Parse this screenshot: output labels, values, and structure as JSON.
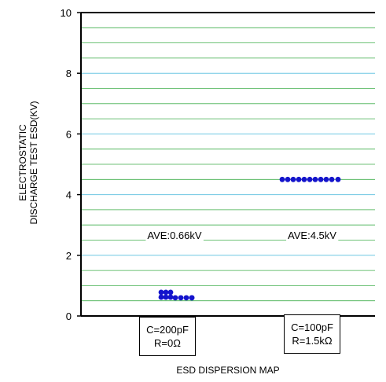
{
  "chart_data": {
    "type": "scatter",
    "ylabel_lines": [
      "ELECTROSTATIC",
      "DISCHARGE TEST ESD(KV)"
    ],
    "xlabel": "ESD DISPERSION MAP",
    "ylim": [
      0,
      10
    ],
    "yticks": [
      "0",
      "2",
      "4",
      "6",
      "8",
      "10"
    ],
    "grid": true,
    "series": [
      {
        "condition_lines": [
          "C=200pF",
          "R=0Ω"
        ],
        "annotation": "AVE:0.66kV",
        "color": "#1414cc",
        "values": [
          0.78,
          0.62,
          0.78,
          0.62,
          0.78,
          0.62,
          0.6,
          0.6,
          0.6,
          0.6,
          0.6
        ]
      },
      {
        "condition_lines": [
          "C=100pF",
          "R=1.5kΩ"
        ],
        "annotation": "AVE:4.5kV",
        "color": "#1414cc",
        "values": [
          4.5,
          4.5,
          4.5,
          4.5,
          4.5,
          4.5,
          4.5,
          4.5,
          4.5,
          4.5,
          4.5
        ]
      }
    ]
  }
}
